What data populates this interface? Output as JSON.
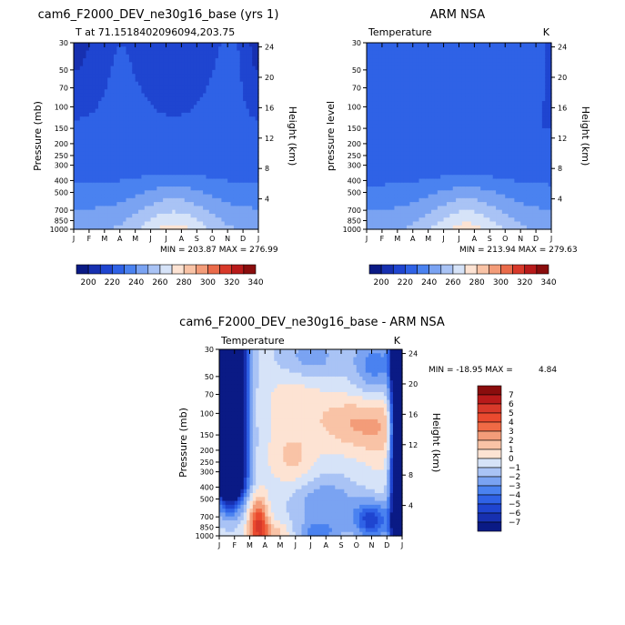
{
  "chart_data": [
    {
      "type": "heatmap",
      "id": "model",
      "title": "cam6_F2000_DEV_ne30g16_base (yrs 1)",
      "subtitle": "T at 71.1518402096094,203.75",
      "ylabel": "Pressure (mb)",
      "ylabel_right": "Height (km)",
      "units": "",
      "months": [
        "J",
        "F",
        "M",
        "A",
        "M",
        "J",
        "J",
        "A",
        "S",
        "O",
        "N",
        "D",
        "J"
      ],
      "pressure_ticks": [
        "30",
        "50",
        "70",
        "100",
        "150",
        "200",
        "250",
        "300",
        "400",
        "500",
        "700",
        "850",
        "1000"
      ],
      "height_ticks": [
        "24",
        "20",
        "16",
        "12",
        "8",
        "4"
      ],
      "stats": "MIN = 203.87 MAX = 276.99",
      "min": 203.87,
      "max": 276.99
    },
    {
      "type": "heatmap",
      "id": "obs",
      "title": "ARM NSA",
      "subtitle": "Temperature",
      "ylabel": "pressure level",
      "ylabel_right": "Height (km)",
      "units": "K",
      "months": [
        "J",
        "F",
        "M",
        "A",
        "M",
        "J",
        "J",
        "A",
        "S",
        "O",
        "N",
        "D",
        "J"
      ],
      "pressure_ticks": [
        "30",
        "50",
        "70",
        "100",
        "150",
        "200",
        "250",
        "300",
        "400",
        "500",
        "700",
        "850",
        "1000"
      ],
      "height_ticks": [
        "24",
        "20",
        "16",
        "12",
        "8",
        "4"
      ],
      "stats": "MIN = 213.94 MAX = 279.63",
      "min": 213.94,
      "max": 279.63
    },
    {
      "type": "heatmap",
      "id": "diff",
      "title": "cam6_F2000_DEV_ne30g16_base - ARM NSA",
      "subtitle": "Temperature",
      "ylabel": "Pressure (mb)",
      "ylabel_right": "Height (km)",
      "units": "K",
      "months": [
        "J",
        "F",
        "M",
        "A",
        "M",
        "J",
        "J",
        "A",
        "S",
        "O",
        "N",
        "D",
        "J"
      ],
      "pressure_ticks": [
        "30",
        "50",
        "70",
        "100",
        "150",
        "200",
        "250",
        "300",
        "400",
        "500",
        "700",
        "850",
        "1000"
      ],
      "height_ticks": [
        "24",
        "20",
        "16",
        "12",
        "8",
        "4"
      ],
      "stats_min_label": "MIN = -18.95 MAX =",
      "stats_max_value": "4.84",
      "min": -18.95,
      "max": 4.84
    }
  ],
  "colorbars": {
    "abs": {
      "labels": [
        "200",
        "220",
        "240",
        "260",
        "280",
        "300",
        "320",
        "340"
      ],
      "colors": [
        "#0a1a85",
        "#1730b0",
        "#1f45d0",
        "#2f62e6",
        "#4a82f0",
        "#7aa3f2",
        "#a9c3f5",
        "#d6e3f8",
        "#fde3d3",
        "#f9c3a6",
        "#f39c79",
        "#ea6b4a",
        "#d8392a",
        "#b81a1a",
        "#8a0d0d"
      ]
    },
    "diff": {
      "labels": [
        "7",
        "6",
        "5",
        "4",
        "3",
        "2",
        "1",
        "0",
        "−1",
        "−2",
        "−3",
        "−4",
        "−5",
        "−6",
        "−7"
      ],
      "colors": [
        "#8a0d0d",
        "#b81a1a",
        "#d8392a",
        "#ea4a2f",
        "#f06a45",
        "#f39c79",
        "#f9c3a6",
        "#fde3d3",
        "#d6e3f8",
        "#a9c3f5",
        "#7aa3f2",
        "#4a82f0",
        "#2f62e6",
        "#1f45d0",
        "#1730b0",
        "#0a1a85"
      ]
    }
  }
}
